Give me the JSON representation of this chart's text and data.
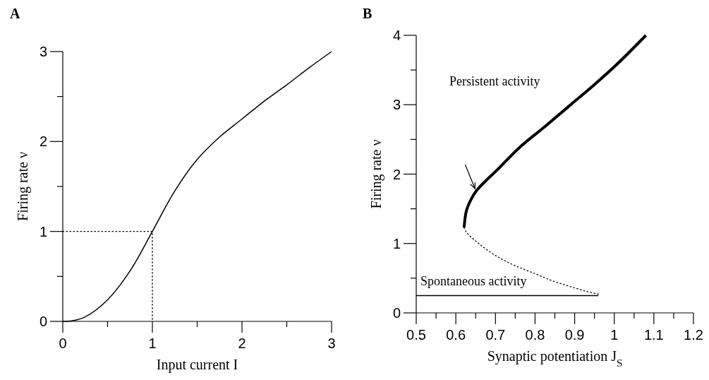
{
  "chart_data": [
    {
      "type": "line",
      "title": "A",
      "xlabel": "Input current I",
      "ylabel": "Firing rate ν",
      "xlim": [
        0,
        3
      ],
      "ylim": [
        0,
        3
      ],
      "grid": false,
      "xticks": [
        0,
        {
          "value": 0.5,
          "label": null
        },
        1,
        {
          "value": 1.5,
          "label": null
        },
        2,
        {
          "value": 2.5,
          "label": null
        },
        3
      ],
      "yticks": [
        0,
        {
          "value": 0.5,
          "label": null
        },
        1,
        {
          "value": 1.5,
          "label": null
        },
        2,
        {
          "value": 2.5,
          "label": null
        },
        3
      ],
      "series": [
        {
          "color": "#000000",
          "line_style": "solid",
          "x": [
            0,
            0.1,
            0.25,
            0.5,
            0.75,
            1,
            1.25,
            1.5,
            1.75,
            2,
            2.25,
            2.5,
            2.75,
            3
          ],
          "values": [
            0,
            0.005,
            0.05,
            0.24,
            0.56,
            1,
            1.45,
            1.8,
            2.05,
            2.25,
            2.45,
            2.63,
            2.82,
            3
          ]
        },
        {
          "color": "#000000",
          "line_style": "dotted",
          "x": [
            0,
            1,
            1
          ],
          "values": [
            1,
            1,
            0
          ]
        }
      ]
    },
    {
      "type": "line",
      "title": "B",
      "xlabel": "Synaptic potentiation J$_{S}$",
      "ylabel": "Firing rate ν",
      "xlim": [
        0.5,
        1.2
      ],
      "ylim": [
        0,
        4
      ],
      "grid": false,
      "xticks": [
        0.5,
        {
          "value": 0.55,
          "label": null
        },
        0.6,
        {
          "value": 0.65,
          "label": null
        },
        0.7,
        {
          "value": 0.75,
          "label": null
        },
        0.8,
        {
          "value": 0.85,
          "label": null
        },
        0.9,
        {
          "value": 0.95,
          "label": null
        },
        1,
        {
          "value": 1.05,
          "label": null
        },
        1.1,
        {
          "value": 1.15,
          "label": null
        },
        1.2
      ],
      "yticks": [
        0,
        {
          "value": 0.5,
          "label": null
        },
        1,
        {
          "value": 1.5,
          "label": null
        },
        2,
        {
          "value": 2.5,
          "label": null
        },
        3,
        {
          "value": 3.5,
          "label": null
        },
        4
      ],
      "series": [
        {
          "color": "#000000",
          "line_style": "solid",
          "x": [
            0.621,
            0.623,
            0.627,
            0.637,
            0.652,
            0.675,
            0.706,
            0.76,
            0.828,
            0.89,
            0.95,
            1.01,
            1.08
          ],
          "values": [
            1.23,
            1.35,
            1.48,
            1.62,
            1.76,
            1.9,
            2.07,
            2.38,
            2.7,
            3.0,
            3.29,
            3.6,
            4.0
          ]
        },
        {
          "color": "#000000",
          "line_style": "dotted",
          "x": [
            0.621,
            0.627,
            0.66,
            0.705,
            0.75,
            0.798,
            0.845,
            0.889,
            0.93,
            0.96
          ],
          "values": [
            1.23,
            1.16,
            0.99,
            0.81,
            0.68,
            0.57,
            0.46,
            0.38,
            0.31,
            0.27
          ]
        },
        {
          "color": "#000000",
          "line_style": "solid",
          "x": [
            0.5,
            0.96
          ],
          "values": [
            0.25,
            0.25
          ]
        }
      ],
      "annotations": [
        "Persistent activity",
        "Spontaneous activity"
      ]
    }
  ]
}
